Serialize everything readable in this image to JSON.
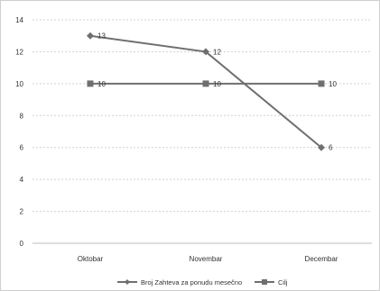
{
  "chart_data": {
    "type": "line",
    "categories": [
      "Oktobar",
      "Novembar",
      "Decembar"
    ],
    "series": [
      {
        "name": "Broj Zahteva za ponudu mesečno",
        "values": [
          13,
          12,
          6
        ],
        "marker": "diamond",
        "color": "#6f6f6f"
      },
      {
        "name": "Cilj",
        "values": [
          10,
          10,
          10
        ],
        "marker": "square",
        "color": "#6f6f6f"
      }
    ],
    "ylim": [
      0,
      14
    ],
    "yticks": [
      0,
      2,
      4,
      6,
      8,
      10,
      12,
      14
    ],
    "grid": true,
    "legend_position": "bottom"
  }
}
